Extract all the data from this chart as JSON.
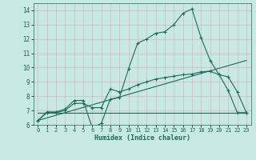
{
  "xlabel": "Humidex (Indice chaleur)",
  "x_ticks": [
    0,
    1,
    2,
    3,
    4,
    5,
    6,
    7,
    8,
    9,
    10,
    11,
    12,
    13,
    14,
    15,
    16,
    17,
    18,
    19,
    20,
    21,
    22,
    23
  ],
  "ylim": [
    6,
    14.5
  ],
  "xlim": [
    -0.5,
    23.5
  ],
  "yticks": [
    6,
    7,
    8,
    9,
    10,
    11,
    12,
    13,
    14
  ],
  "bg_color": "#c8e8e4",
  "grid_color": "#d4b8b8",
  "line_color": "#1a6b5a",
  "curve1_x": [
    0,
    1,
    2,
    3,
    4,
    5,
    6,
    7,
    8,
    9,
    10,
    11,
    12,
    13,
    14,
    15,
    16,
    17,
    18,
    19,
    20,
    21,
    22,
    23
  ],
  "curve1_y": [
    6.3,
    6.9,
    6.9,
    7.1,
    7.7,
    7.7,
    5.8,
    6.1,
    7.8,
    7.9,
    9.9,
    11.7,
    12.0,
    12.4,
    12.5,
    13.0,
    13.8,
    14.1,
    12.1,
    10.5,
    9.5,
    8.4,
    6.85,
    6.85
  ],
  "curve2_x": [
    0,
    1,
    2,
    3,
    4,
    5,
    6,
    7,
    8,
    9,
    10,
    11,
    12,
    13,
    14,
    15,
    16,
    17,
    18,
    19,
    20,
    21,
    22,
    23
  ],
  "curve2_y": [
    6.3,
    6.85,
    6.85,
    7.0,
    7.5,
    7.5,
    7.2,
    7.2,
    8.5,
    8.3,
    8.5,
    8.8,
    9.0,
    9.2,
    9.3,
    9.4,
    9.5,
    9.55,
    9.7,
    9.75,
    9.5,
    9.35,
    8.3,
    6.85
  ],
  "line3_x": [
    0,
    23
  ],
  "line3_y": [
    6.3,
    10.5
  ],
  "line4_x": [
    0,
    23
  ],
  "line4_y": [
    6.85,
    6.85
  ]
}
